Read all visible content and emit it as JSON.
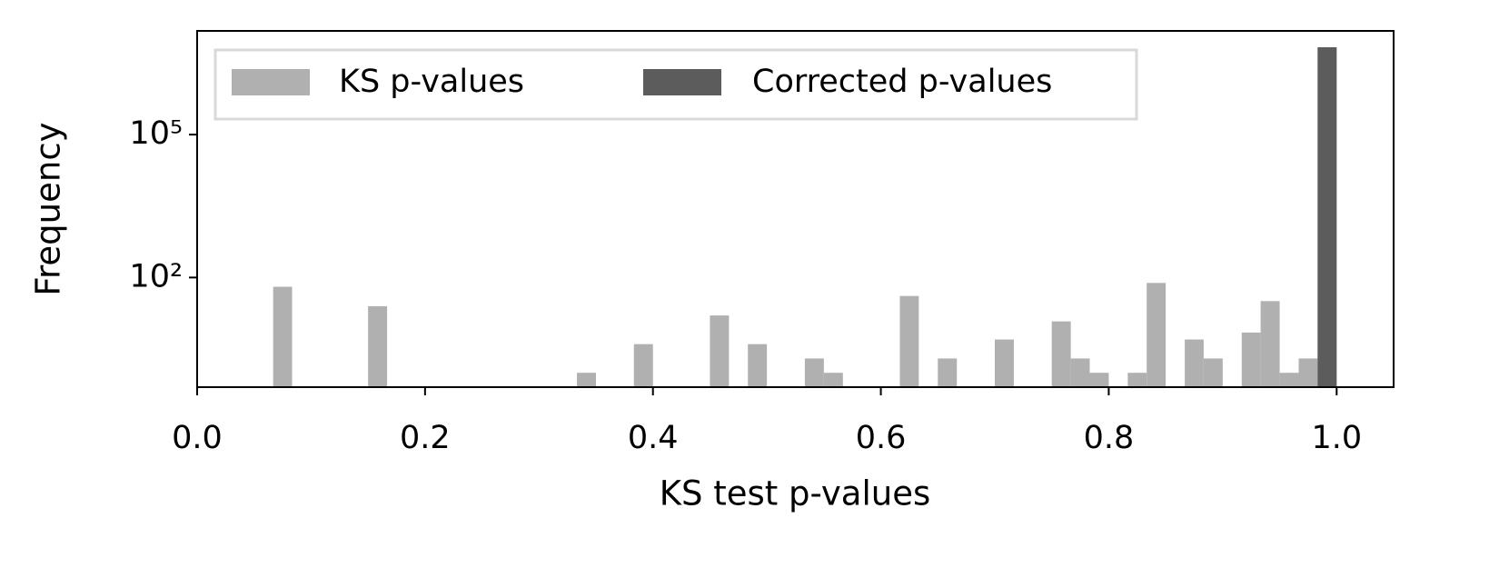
{
  "chart_data": {
    "type": "histogram",
    "xlabel": "KS test p-values",
    "ylabel": "Frequency",
    "bins": [
      0,
      0.0167,
      0.0333,
      0.05,
      0.0667,
      0.0833,
      0.1,
      0.1167,
      0.1333,
      0.15,
      0.1667,
      0.1833,
      0.2,
      0.2167,
      0.2333,
      0.25,
      0.2667,
      0.2833,
      0.3,
      0.3167,
      0.3333,
      0.35,
      0.3667,
      0.3833,
      0.4,
      0.4167,
      0.4333,
      0.45,
      0.4667,
      0.4833,
      0.5,
      0.5167,
      0.5333,
      0.55,
      0.5667,
      0.5833,
      0.6,
      0.6167,
      0.6333,
      0.65,
      0.6667,
      0.6833,
      0.7,
      0.7167,
      0.7333,
      0.75,
      0.7667,
      0.7833,
      0.8,
      0.8167,
      0.8333,
      0.85,
      0.8667,
      0.8833,
      0.9,
      0.9167,
      0.9333,
      0.95,
      0.9667,
      0.9833,
      1.0
    ],
    "series": [
      {
        "name": "KS p-values",
        "color": "#b0b0b0",
        "values": [
          0,
          0,
          0,
          0,
          64,
          0,
          0,
          0,
          0,
          25,
          0,
          0,
          0,
          0,
          0,
          0,
          0,
          0,
          0,
          0,
          1,
          0,
          0,
          4,
          0,
          0,
          0,
          16,
          0,
          4,
          0,
          0,
          2,
          1,
          0,
          0,
          0,
          41,
          0,
          2,
          0,
          0,
          5,
          0,
          0,
          12,
          2,
          1,
          0,
          1,
          77,
          0,
          5,
          2,
          0,
          7,
          32,
          1,
          2,
          6800000
        ]
      },
      {
        "name": "Corrected p-values",
        "color": "#5c5c5c",
        "values": [
          0,
          0,
          0,
          0,
          0,
          0,
          0,
          0,
          0,
          0,
          0,
          0,
          0,
          0,
          0,
          0,
          0,
          0,
          0,
          0,
          0,
          0,
          0,
          0,
          0,
          0,
          0,
          0,
          0,
          0,
          0,
          0,
          0,
          0,
          0,
          0,
          0,
          0,
          0,
          0,
          0,
          0,
          0,
          0,
          0,
          0,
          0,
          0,
          0,
          0,
          0,
          0,
          0,
          0,
          0,
          0,
          0,
          0,
          0,
          6800000
        ]
      }
    ],
    "xlim": [
      0,
      1.05
    ],
    "xticks": [
      {
        "value": 0,
        "label": "0.0"
      },
      0.2,
      0.4,
      0.6,
      0.8,
      {
        "value": 1,
        "label": "1.0"
      }
    ],
    "ylim": [
      0.5,
      15000000
    ],
    "yscale": "log",
    "yticks": [
      {
        "value": 100,
        "label": "10²"
      },
      {
        "value": 100000,
        "label": "10⁵"
      }
    ],
    "legend": "upper left"
  }
}
